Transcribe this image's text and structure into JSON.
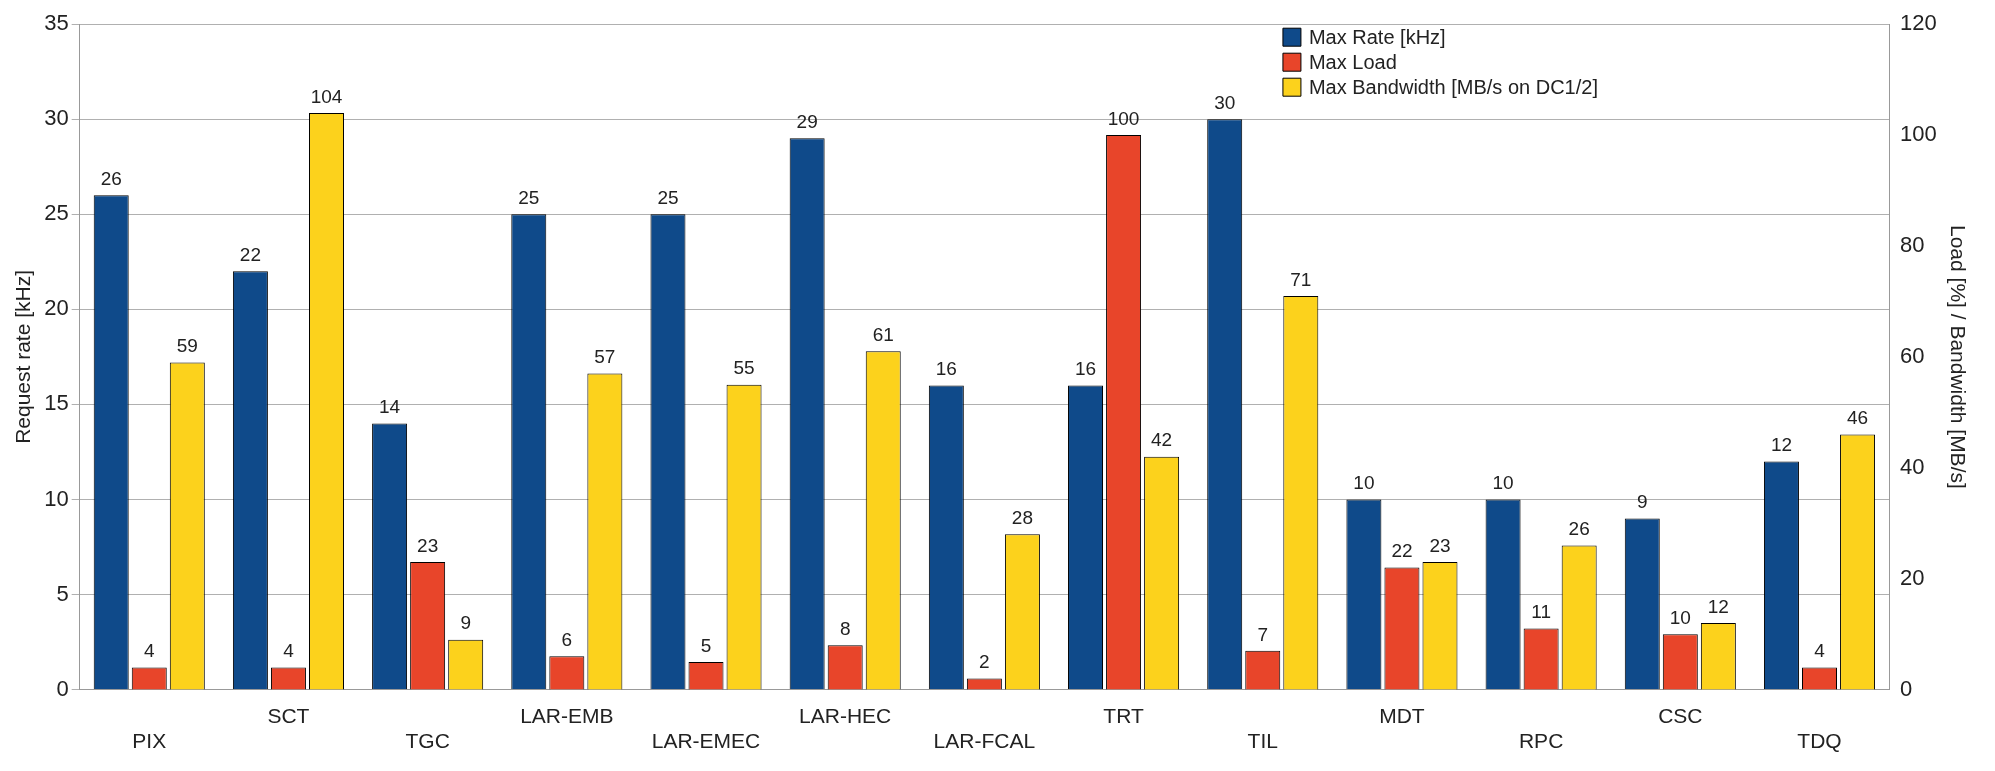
{
  "chart_data": {
    "type": "bar",
    "categories": [
      "PIX",
      "SCT",
      "TGC",
      "LAR-EMB",
      "LAR-EMEC",
      "LAR-HEC",
      "LAR-FCAL",
      "TRT",
      "TIL",
      "MDT",
      "RPC",
      "CSC",
      "TDQ"
    ],
    "series": [
      {
        "name": "Max Rate [kHz]",
        "color": "#0f4a8a",
        "values": [
          26,
          22,
          14,
          25,
          25,
          29,
          16,
          16,
          30,
          10,
          10,
          9,
          12
        ]
      },
      {
        "name": "Max Load",
        "color": "#e8452a",
        "axis": "y2",
        "values": [
          4,
          4,
          23,
          6,
          5,
          8,
          2,
          100,
          7,
          22,
          11,
          10,
          4
        ]
      },
      {
        "name": "Max Bandwidth [MB/s on DC1/2]",
        "color": "#fcd21c",
        "axis": "y2",
        "values": [
          59,
          104,
          9,
          57,
          55,
          61,
          28,
          42,
          71,
          23,
          26,
          12,
          46
        ]
      }
    ],
    "ylabel": "Request rate [kHz]",
    "y2label": "Load [%] / Bandwidth [MB/s]",
    "ylim": [
      0,
      35
    ],
    "yticks": [
      0,
      5,
      10,
      15,
      20,
      25,
      30,
      35
    ],
    "y2lim": [
      0,
      120
    ],
    "y2ticks": [
      0,
      20,
      40,
      60,
      80,
      100,
      120
    ],
    "grid": "y",
    "legend": "top right",
    "data_labels": true
  }
}
